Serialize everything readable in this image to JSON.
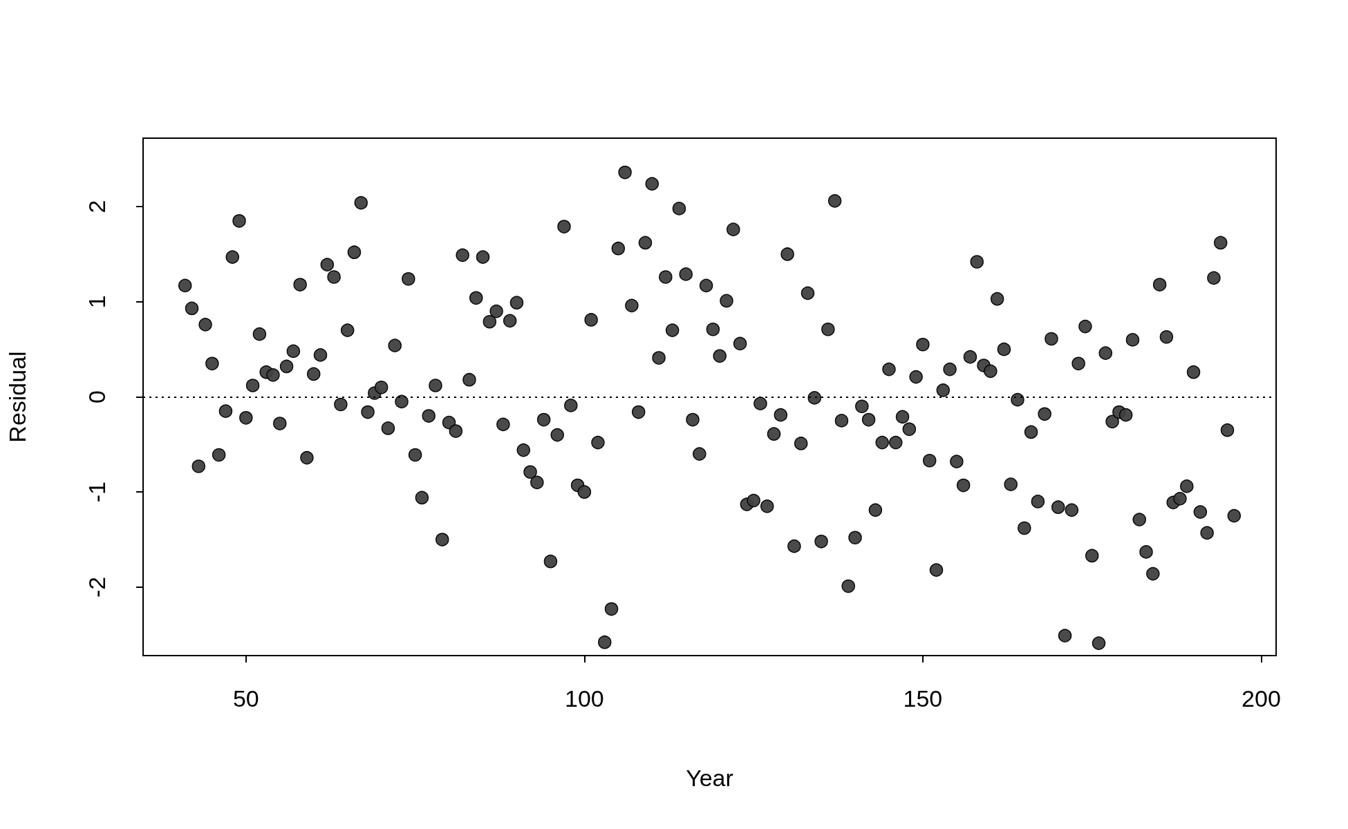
{
  "chart_data": {
    "type": "scatter",
    "xlabel": "Year",
    "ylabel": "Residual",
    "x": [
      41,
      42,
      43,
      44,
      45,
      46,
      47,
      48,
      49,
      50,
      51,
      52,
      53,
      54,
      55,
      56,
      57,
      58,
      59,
      60,
      61,
      62,
      63,
      64,
      65,
      66,
      67,
      68,
      69,
      70,
      71,
      72,
      73,
      74,
      75,
      76,
      77,
      78,
      79,
      80,
      81,
      82,
      83,
      84,
      85,
      86,
      87,
      88,
      89,
      90,
      91,
      92,
      93,
      94,
      95,
      96,
      97,
      98,
      99,
      100,
      101,
      102,
      103,
      104,
      105,
      106,
      107,
      108,
      109,
      110,
      111,
      112,
      113,
      114,
      115,
      116,
      117,
      118,
      119,
      120,
      121,
      122,
      123,
      124,
      125,
      126,
      127,
      128,
      129,
      130,
      131,
      132,
      133,
      134,
      135,
      136,
      137,
      138,
      139,
      140,
      141,
      142,
      143,
      144,
      145,
      146,
      147,
      148,
      149,
      150,
      151,
      152,
      153,
      154,
      155,
      156,
      157,
      158,
      159,
      160,
      161,
      162,
      163,
      164,
      165,
      166,
      167,
      168,
      169,
      170,
      171,
      172,
      173,
      174,
      175,
      176,
      177,
      178,
      179,
      180,
      181,
      182,
      183,
      184,
      185,
      186,
      187,
      188,
      189,
      190,
      191,
      192,
      193,
      194,
      195,
      196
    ],
    "values": [
      1.17,
      0.93,
      -0.73,
      0.76,
      0.35,
      -0.61,
      -0.15,
      1.47,
      1.85,
      -0.22,
      0.12,
      0.66,
      0.26,
      0.23,
      -0.28,
      0.32,
      0.48,
      1.18,
      -0.64,
      0.24,
      0.44,
      1.39,
      1.26,
      -0.08,
      0.7,
      1.52,
      2.04,
      -0.16,
      0.04,
      0.1,
      -0.33,
      0.54,
      -0.05,
      1.24,
      -0.61,
      -1.06,
      -0.2,
      0.12,
      -1.5,
      -0.27,
      -0.36,
      1.49,
      0.18,
      1.04,
      1.47,
      0.79,
      0.9,
      -0.29,
      0.8,
      0.99,
      -0.56,
      -0.79,
      -0.9,
      -0.24,
      -1.73,
      -0.4,
      1.79,
      -0.09,
      -0.93,
      -1.0,
      0.81,
      -0.48,
      -2.58,
      -2.23,
      1.56,
      2.36,
      0.96,
      -0.16,
      1.62,
      2.24,
      0.41,
      1.26,
      0.7,
      1.98,
      1.29,
      -0.24,
      -0.6,
      1.17,
      0.71,
      0.43,
      1.01,
      1.76,
      0.56,
      -1.13,
      -1.09,
      -0.07,
      -1.15,
      -0.39,
      -0.19,
      1.5,
      -1.57,
      -0.49,
      1.09,
      -0.01,
      -1.52,
      0.71,
      2.06,
      -0.25,
      -1.99,
      -1.48,
      -0.1,
      -0.24,
      -1.19,
      -0.48,
      0.29,
      -0.48,
      -0.21,
      -0.34,
      0.21,
      0.55,
      -0.67,
      -1.82,
      0.07,
      0.29,
      -0.68,
      -0.93,
      0.42,
      1.42,
      0.33,
      0.27,
      1.03,
      0.5,
      -0.92,
      -0.03,
      -1.38,
      -0.37,
      -1.1,
      -0.18,
      0.61,
      -1.16,
      -2.51,
      -1.19,
      0.35,
      0.74,
      -1.67,
      -2.59,
      0.46,
      -0.26,
      -0.16,
      -0.19,
      0.6,
      -1.29,
      -1.63,
      -1.86,
      1.18,
      0.63,
      -1.11,
      -1.07,
      -0.94,
      0.26,
      -1.21,
      -1.43,
      1.25,
      1.62,
      -0.35,
      -1.25
    ],
    "color": "#404040",
    "marker": "circle",
    "xlim": [
      34.8,
      202.2
    ],
    "xticks": [
      50,
      100,
      150,
      200
    ],
    "ylim": [
      -2.72,
      2.72
    ],
    "yticks": [
      -2,
      -1,
      0,
      1,
      2
    ],
    "ref_lines": [
      {
        "axis": "y",
        "value": 0,
        "color": "#000000",
        "line_style": "dotted"
      }
    ],
    "grid": false
  }
}
